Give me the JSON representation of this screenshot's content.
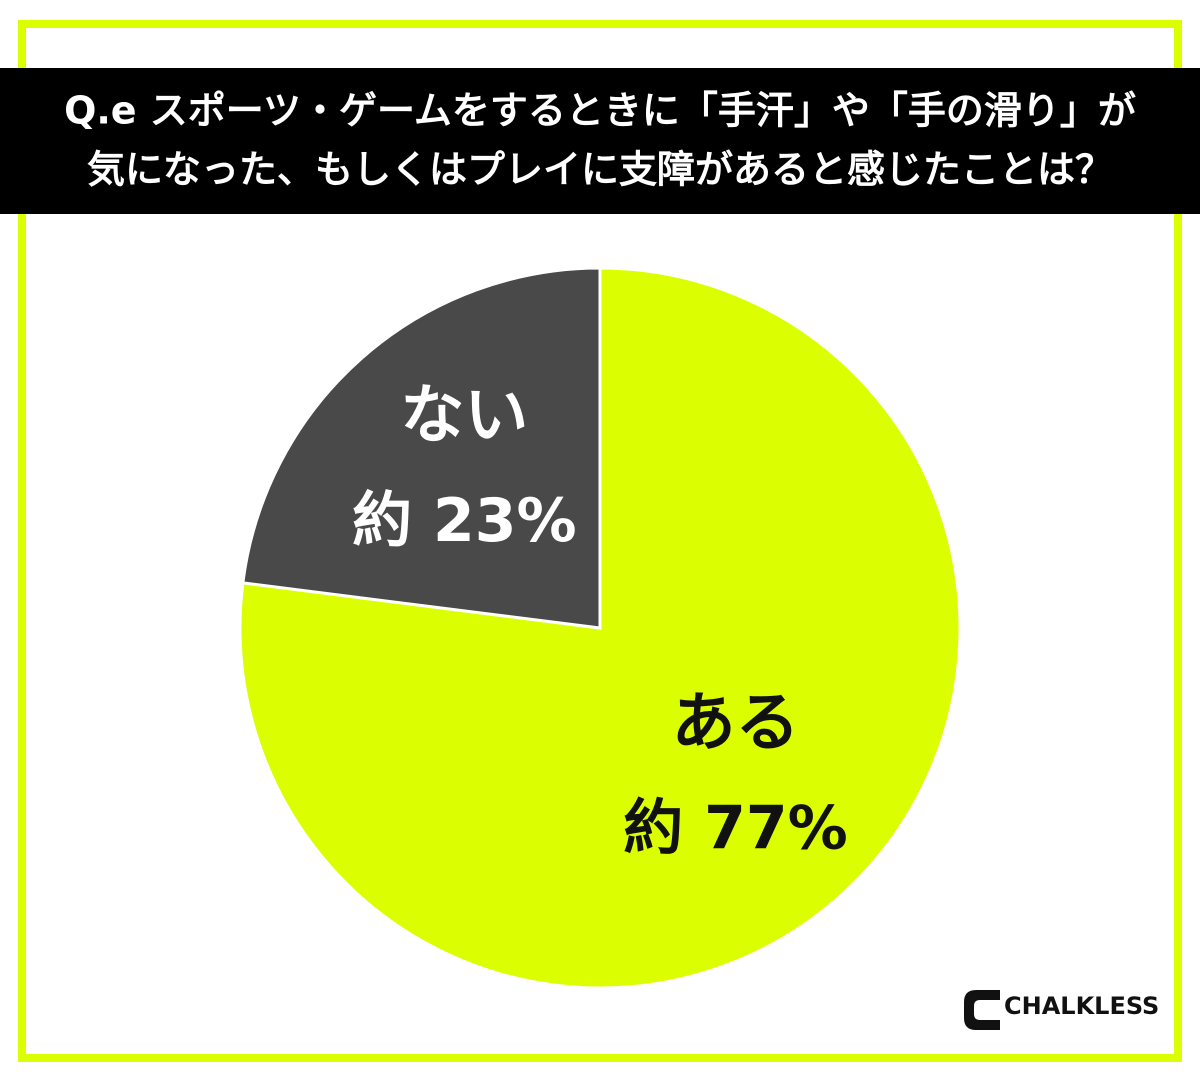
{
  "chart_data": {
    "type": "pie",
    "title": [
      "Q.e スポーツ・ゲームをするときに「手汗」や「手の滑り」が",
      "気になった、もしくはプレイに支障があると感じたことは？"
    ],
    "categories": [
      "ある",
      "ない"
    ],
    "values": [
      77,
      23
    ],
    "value_labels": [
      "約 77%",
      "約 23%"
    ],
    "colors": [
      "#dbff00",
      "#494949"
    ],
    "logo": "CHALKLESS"
  }
}
